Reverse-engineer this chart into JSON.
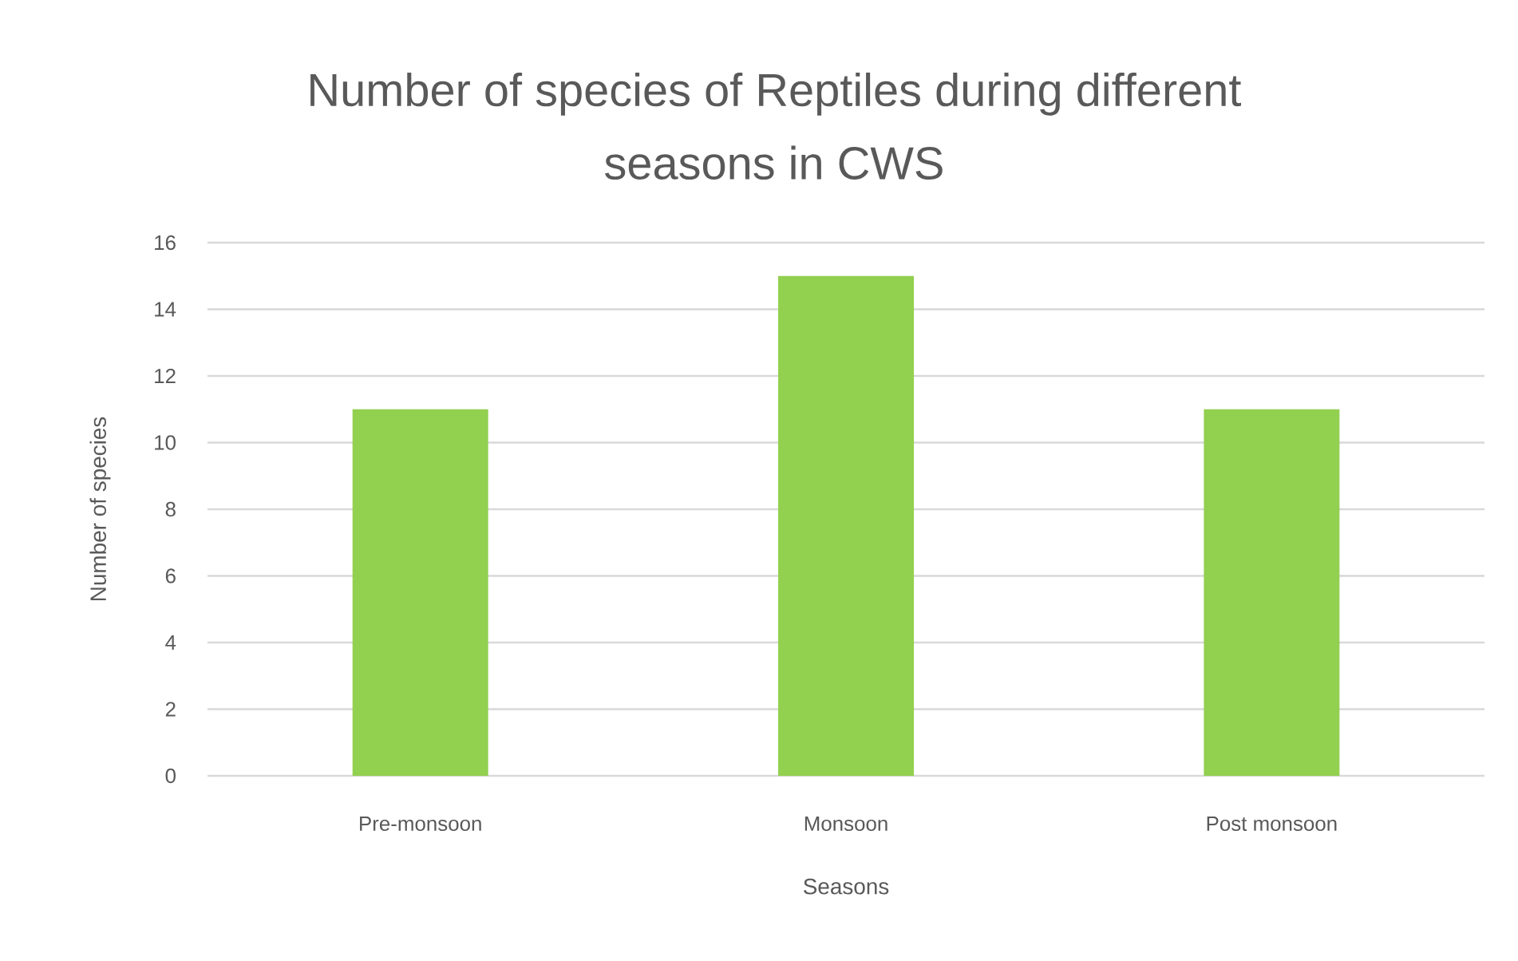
{
  "chart_data": {
    "type": "bar",
    "title": "Number of species of Reptiles during different seasons in CWS",
    "xlabel": "Seasons",
    "ylabel": "Number of species",
    "categories": [
      "Pre-monsoon",
      "Monsoon",
      "Post monsoon"
    ],
    "values": [
      11,
      15,
      11
    ],
    "color": "#92d050",
    "ylim": [
      0,
      16
    ],
    "yticks": [
      0,
      2,
      4,
      6,
      8,
      10,
      12,
      14,
      16
    ],
    "grid": "y"
  }
}
